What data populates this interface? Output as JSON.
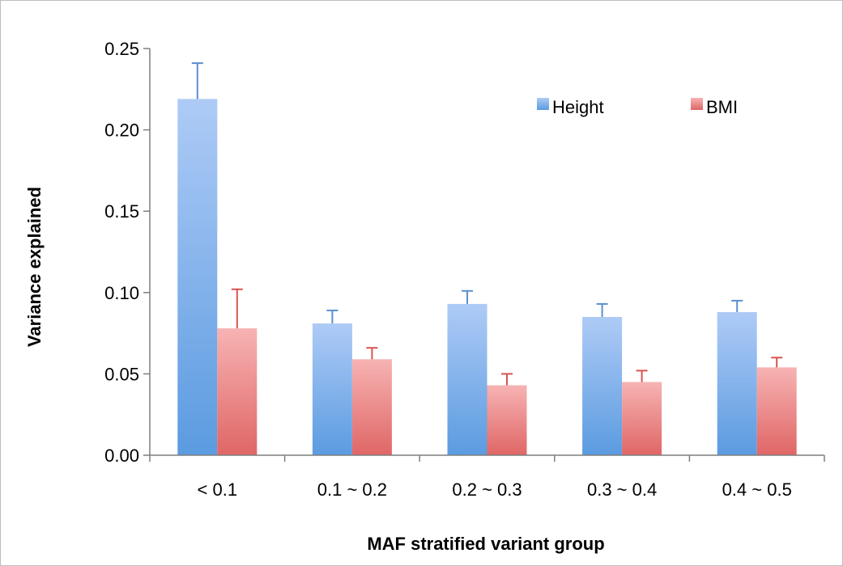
{
  "chart_data": {
    "type": "bar",
    "title": "",
    "xlabel": "MAF stratified variant group",
    "ylabel": "Variance explained",
    "ylim": [
      0,
      0.25
    ],
    "yticks": [
      "0.00",
      "0.05",
      "0.10",
      "0.15",
      "0.20",
      "0.25"
    ],
    "grid": false,
    "legend_position": "top-right",
    "categories": [
      "< 0.1",
      "0.1 ~ 0.2",
      "0.2 ~ 0.3",
      "0.3 ~ 0.4",
      "0.4 ~ 0.5"
    ],
    "series": [
      {
        "name": "Height",
        "values": [
          0.219,
          0.081,
          0.093,
          0.085,
          0.088
        ],
        "errors": [
          0.022,
          0.008,
          0.008,
          0.008,
          0.007
        ],
        "color_top": "#aecbf6",
        "color_bottom": "#5b9be0",
        "error_color": "#5b8fce"
      },
      {
        "name": "BMI",
        "values": [
          0.078,
          0.059,
          0.043,
          0.045,
          0.054
        ],
        "errors": [
          0.024,
          0.007,
          0.007,
          0.007,
          0.006
        ],
        "color_top": "#f7b3b3",
        "color_bottom": "#e06666",
        "error_color": "#d9534f"
      }
    ]
  }
}
